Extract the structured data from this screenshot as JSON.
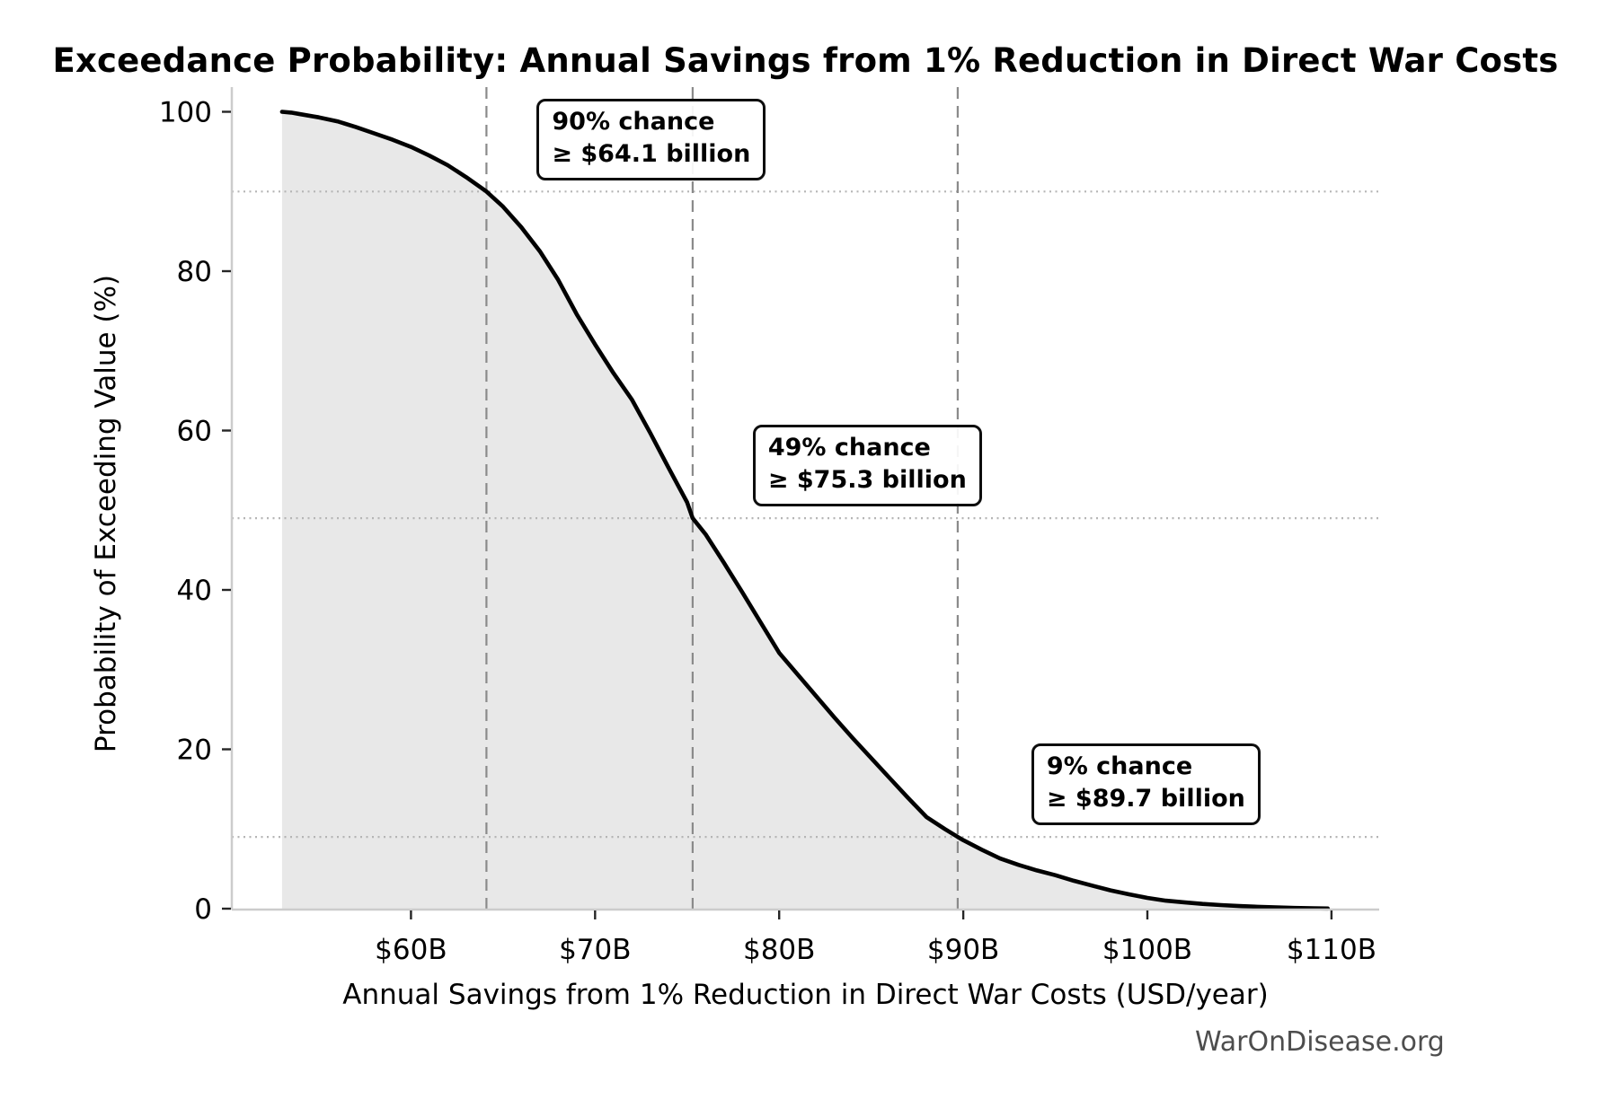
{
  "chart_data": {
    "type": "area",
    "title": "Exceedance Probability: Annual Savings from 1% Reduction in Direct War Costs",
    "xlabel": "Annual Savings from 1% Reduction in Direct War Costs (USD/year)",
    "ylabel": "Probability of Exceeding Value (%)",
    "watermark": "WarOnDisease.org",
    "xlim": [
      50.3,
      112.6
    ],
    "ylim": [
      0,
      103
    ],
    "x_ticks": [
      {
        "value": 60,
        "label": "$60B"
      },
      {
        "value": 70,
        "label": "$70B"
      },
      {
        "value": 80,
        "label": "$80B"
      },
      {
        "value": 90,
        "label": "$90B"
      },
      {
        "value": 100,
        "label": "$100B"
      },
      {
        "value": 110,
        "label": "$110B"
      }
    ],
    "y_ticks": [
      {
        "value": 0,
        "label": "0"
      },
      {
        "value": 20,
        "label": "20"
      },
      {
        "value": 40,
        "label": "40"
      },
      {
        "value": 60,
        "label": "60"
      },
      {
        "value": 80,
        "label": "80"
      },
      {
        "value": 100,
        "label": "100"
      }
    ],
    "series": [
      {
        "name": "exceedance-probability-curve",
        "points": [
          [
            53.0,
            100.0
          ],
          [
            53.5,
            99.9
          ],
          [
            54,
            99.7
          ],
          [
            55,
            99.3
          ],
          [
            56,
            98.8
          ],
          [
            57,
            98.1
          ],
          [
            58,
            97.3
          ],
          [
            59,
            96.5
          ],
          [
            60,
            95.6
          ],
          [
            61,
            94.5
          ],
          [
            62,
            93.3
          ],
          [
            63,
            91.8
          ],
          [
            64.1,
            90.0
          ],
          [
            65,
            88.1
          ],
          [
            66,
            85.5
          ],
          [
            67,
            82.5
          ],
          [
            68,
            78.9
          ],
          [
            69,
            74.6
          ],
          [
            70,
            70.8
          ],
          [
            71,
            67.2
          ],
          [
            72,
            63.9
          ],
          [
            73,
            59.7
          ],
          [
            74,
            55.3
          ],
          [
            75,
            51.0
          ],
          [
            75.3,
            49.0
          ],
          [
            76,
            47.0
          ],
          [
            77,
            43.4
          ],
          [
            78,
            39.7
          ],
          [
            79,
            35.9
          ],
          [
            80,
            32.1
          ],
          [
            81,
            29.4
          ],
          [
            82,
            26.7
          ],
          [
            83,
            24.0
          ],
          [
            84,
            21.4
          ],
          [
            85,
            18.9
          ],
          [
            86,
            16.4
          ],
          [
            87,
            13.9
          ],
          [
            88,
            11.5
          ],
          [
            89,
            10.0
          ],
          [
            89.7,
            9.0
          ],
          [
            90,
            8.6
          ],
          [
            91,
            7.4
          ],
          [
            92,
            6.3
          ],
          [
            93,
            5.5
          ],
          [
            94,
            4.8
          ],
          [
            95,
            4.2
          ],
          [
            96,
            3.5
          ],
          [
            97,
            2.9
          ],
          [
            98,
            2.3
          ],
          [
            99,
            1.8
          ],
          [
            100,
            1.35
          ],
          [
            101,
            1.0
          ],
          [
            102,
            0.8
          ],
          [
            103,
            0.6
          ],
          [
            104,
            0.45
          ],
          [
            105,
            0.33
          ],
          [
            106,
            0.24
          ],
          [
            107,
            0.16
          ],
          [
            108,
            0.09
          ],
          [
            109,
            0.05
          ],
          [
            109.8,
            0.02
          ]
        ]
      }
    ],
    "annotations": [
      {
        "prob": 90,
        "value": 64.1,
        "line1": "90% chance",
        "line2": "≥ $64.1 billion"
      },
      {
        "prob": 49,
        "value": 75.3,
        "line1": "49% chance",
        "line2": "≥ $75.3 billion"
      },
      {
        "prob": 9,
        "value": 89.7,
        "line1": "9% chance",
        "line2": "≥ $89.7 billion"
      }
    ],
    "grid": {
      "horizontal": "dotted lines at annotation probabilities (90%, 49%, 9%)",
      "vertical": "dashed lines at annotation values ($64.1B, $75.3B, $89.7B)"
    },
    "legend": "none",
    "colors": {
      "curve": "#000000",
      "area_fill": "#e8e8e8",
      "dashed_vline": "#8a8a8a",
      "dotted_hline": "#b5b5b5",
      "spine": "#cccccc",
      "tick": "#262626",
      "text": "#000000",
      "watermark": "#4d4d4d",
      "annotation_border": "#0d0d0d",
      "background": "#ffffff"
    }
  }
}
